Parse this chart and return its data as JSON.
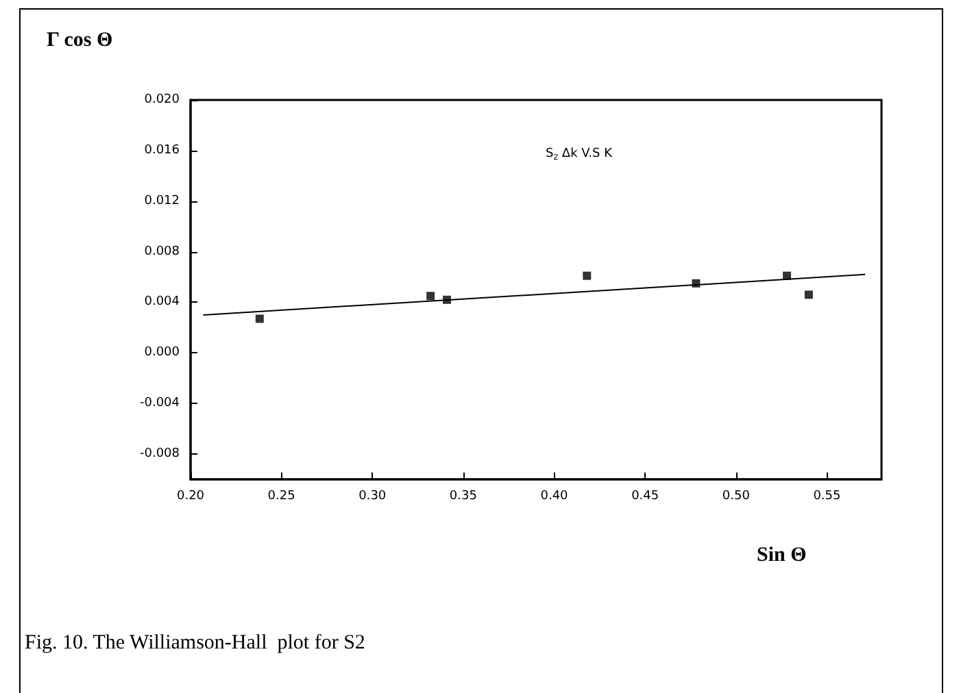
{
  "chart_data": {
    "type": "scatter",
    "xlabel": "Sin Θ",
    "ylabel": "Γ cos Θ",
    "xlim": [
      0.2,
      0.58
    ],
    "ylim": [
      -0.01,
      0.02
    ],
    "xticks": [
      {
        "value": 0.2,
        "label": "0.20"
      },
      {
        "value": 0.25,
        "label": "0.25"
      },
      {
        "value": 0.3,
        "label": "0.30"
      },
      {
        "value": 0.35,
        "label": "0.35"
      },
      {
        "value": 0.4,
        "label": "0.40"
      },
      {
        "value": 0.45,
        "label": "0.45"
      },
      {
        "value": 0.5,
        "label": "0.50"
      },
      {
        "value": 0.55,
        "label": "0.55"
      }
    ],
    "yticks": [
      {
        "value": -0.008,
        "label": "-0.008"
      },
      {
        "value": -0.004,
        "label": "-0.004"
      },
      {
        "value": 0,
        "label": "0.000"
      },
      {
        "value": 0.004,
        "label": "0.004"
      },
      {
        "value": 0.008,
        "label": "0.008"
      },
      {
        "value": 0.012,
        "label": "0.012"
      },
      {
        "value": 0.016,
        "label": "0.016"
      },
      {
        "value": 0.02,
        "label": "0.020"
      }
    ],
    "grid": false,
    "series": [
      {
        "marker": "square",
        "color": "#000000",
        "x": [
          0.238,
          0.332,
          0.341,
          0.418,
          0.478,
          0.528,
          0.54
        ],
        "values": [
          0.0027,
          0.0045,
          0.0042,
          0.0061,
          0.0055,
          0.0061,
          0.0046
        ]
      },
      {
        "type": "line",
        "color": "#000000",
        "x": [
          0.207,
          0.571
        ],
        "values": [
          0.003,
          0.0062
        ]
      }
    ],
    "annotations": [
      "S$_{2}$ Δk V.S K",
      "Fig. 10. The Williamson-Hall  plot for S2"
    ]
  }
}
